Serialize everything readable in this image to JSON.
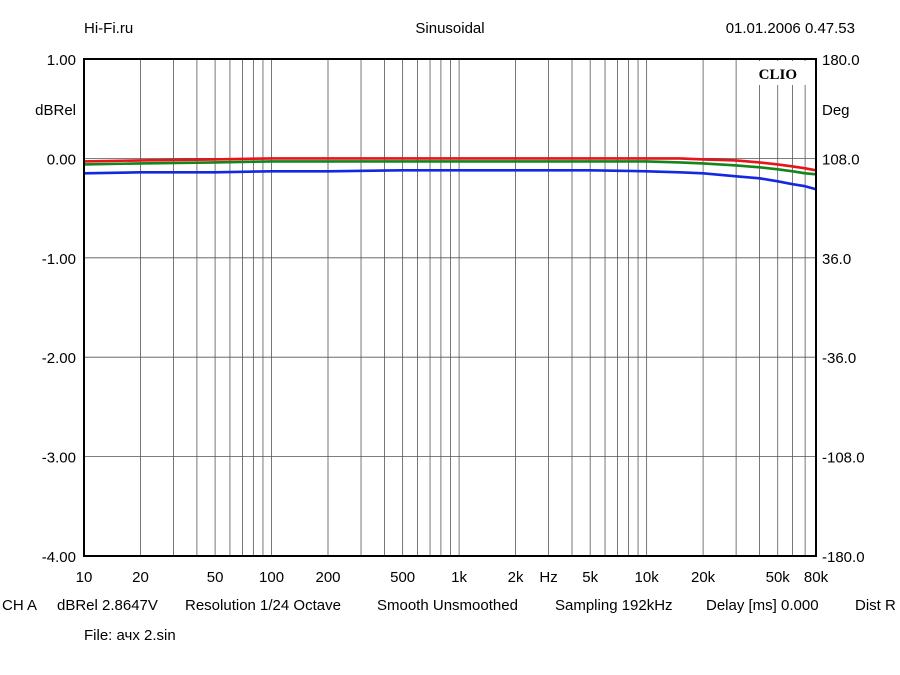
{
  "header": {
    "site": "Hi-Fi.ru",
    "title": "Sinusoidal",
    "timestamp": "01.01.2006 0.47.53"
  },
  "footer": {
    "channel": "CH A",
    "reference": "dBRel 2.8647V",
    "resolution": "Resolution 1/24 Octave",
    "smoothing": "Smooth Unsmoothed",
    "sampling": "Sampling 192kHz",
    "delay": "Delay [ms] 0.000",
    "dist": "Dist R",
    "file": "File: ачх 2.sin"
  },
  "colors": {
    "grid": "#555555",
    "frame": "#000000",
    "red": "#e8141a",
    "green": "#16841d",
    "blue": "#1428e0"
  },
  "chart_data": {
    "type": "line",
    "brand": "CLIO",
    "x_scale": "log",
    "xlim": [
      10,
      80000
    ],
    "x_unit_label": "Hz",
    "x_tick_labels": [
      {
        "value": 10,
        "label": "10"
      },
      {
        "value": 20,
        "label": "20"
      },
      {
        "value": 50,
        "label": "50"
      },
      {
        "value": 100,
        "label": "100"
      },
      {
        "value": 200,
        "label": "200"
      },
      {
        "value": 500,
        "label": "500"
      },
      {
        "value": 1000,
        "label": "1k"
      },
      {
        "value": 2000,
        "label": "2k"
      },
      {
        "value": 5000,
        "label": "5k"
      },
      {
        "value": 10000,
        "label": "10k"
      },
      {
        "value": 20000,
        "label": "20k"
      },
      {
        "value": 50000,
        "label": "50k"
      },
      {
        "value": 80000,
        "label": "80k"
      }
    ],
    "ylabel_left": "dBRel",
    "ylim": [
      -4,
      1
    ],
    "y_tick_labels": [
      "1.00",
      "0.00",
      "-1.00",
      "-2.00",
      "-3.00",
      "-4.00"
    ],
    "ylabel_right": "Deg",
    "y2lim": [
      -180,
      180
    ],
    "y2_tick_labels": [
      "180.0",
      "108.0",
      "36.0",
      "-36.0",
      "-108.0",
      "-180.0"
    ],
    "grid": true,
    "series": [
      {
        "color": "red",
        "x": [
          10,
          20,
          50,
          100,
          200,
          500,
          1000,
          2000,
          5000,
          10000,
          15000,
          20000,
          30000,
          40000,
          50000,
          60000,
          70000,
          80000
        ],
        "y": [
          -0.03,
          -0.02,
          -0.01,
          0.0,
          0.0,
          0.0,
          0.0,
          0.0,
          0.0,
          0.0,
          0.0,
          -0.01,
          -0.02,
          -0.04,
          -0.06,
          -0.08,
          -0.1,
          -0.12
        ]
      },
      {
        "color": "green",
        "x": [
          10,
          20,
          50,
          100,
          200,
          500,
          1000,
          2000,
          5000,
          10000,
          15000,
          20000,
          30000,
          40000,
          50000,
          60000,
          70000,
          80000
        ],
        "y": [
          -0.06,
          -0.05,
          -0.04,
          -0.03,
          -0.03,
          -0.03,
          -0.03,
          -0.03,
          -0.03,
          -0.03,
          -0.04,
          -0.05,
          -0.07,
          -0.09,
          -0.11,
          -0.13,
          -0.15,
          -0.16
        ]
      },
      {
        "color": "blue",
        "x": [
          10,
          20,
          50,
          100,
          200,
          500,
          1000,
          2000,
          5000,
          10000,
          15000,
          20000,
          30000,
          40000,
          50000,
          60000,
          70000,
          80000
        ],
        "y": [
          -0.15,
          -0.14,
          -0.14,
          -0.13,
          -0.13,
          -0.12,
          -0.12,
          -0.12,
          -0.12,
          -0.13,
          -0.14,
          -0.15,
          -0.18,
          -0.2,
          -0.23,
          -0.26,
          -0.28,
          -0.31
        ]
      }
    ]
  }
}
